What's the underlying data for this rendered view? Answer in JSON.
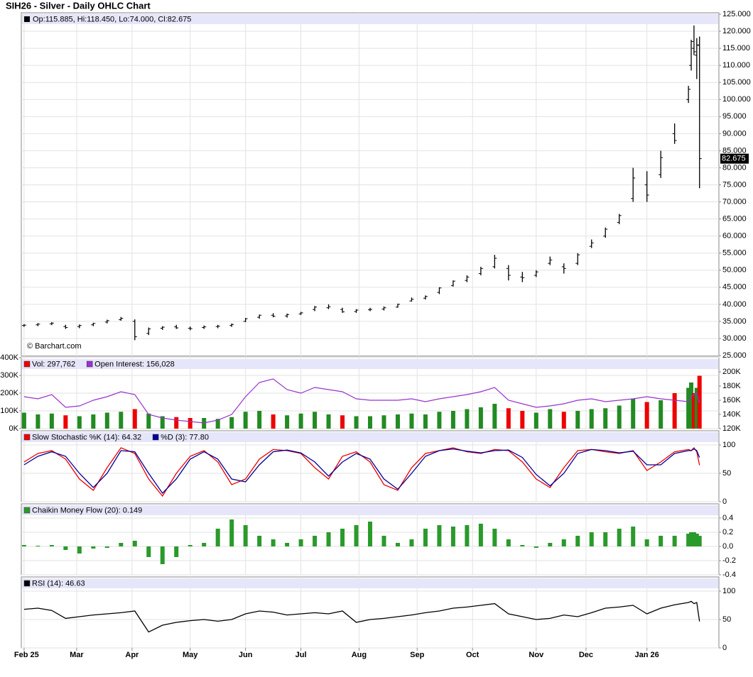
{
  "chart_data": [
    {
      "type": "ohlc",
      "title": "SIH26 - Silver - Daily OHLC Chart",
      "legend": "Op:115.885, Hi:118.450, Lo:74.000, Cl:82.675",
      "credit": "© Barchart.com",
      "last_label": "82.675",
      "color": "#000000",
      "x": [
        0,
        5,
        10,
        15,
        20,
        25,
        30,
        35,
        40,
        45,
        50,
        55,
        60,
        65,
        70,
        75,
        80,
        85,
        90,
        95,
        100,
        105,
        110,
        115,
        120,
        125,
        130,
        135,
        140,
        145,
        150,
        155,
        160,
        165,
        170,
        175,
        180,
        185,
        190,
        195,
        200,
        205,
        210,
        215,
        220,
        225,
        230,
        235,
        240,
        241,
        242,
        243,
        244
      ],
      "xlim": [
        -1,
        251
      ],
      "xticks": [
        {
          "value": 0,
          "label": "Feb 25"
        },
        {
          "value": 19,
          "label": "Mar"
        },
        {
          "value": 39,
          "label": "Apr"
        },
        {
          "value": 60,
          "label": "May"
        },
        {
          "value": 80,
          "label": "Jun"
        },
        {
          "value": 100,
          "label": "Jul"
        },
        {
          "value": 121,
          "label": "Aug"
        },
        {
          "value": 142,
          "label": "Sep"
        },
        {
          "value": 162,
          "label": "Oct"
        },
        {
          "value": 185,
          "label": "Nov"
        },
        {
          "value": 203,
          "label": "Dec"
        },
        {
          "value": 225,
          "label": "Jan 26"
        }
      ],
      "open": [
        33.8,
        34.0,
        34.3,
        33.5,
        33.5,
        34.0,
        34.8,
        35.5,
        35.0,
        31.5,
        33.0,
        33.4,
        33.0,
        33.2,
        33.5,
        33.8,
        35.0,
        36.2,
        36.8,
        36.6,
        37.2,
        38.5,
        39.0,
        38.5,
        37.9,
        38.4,
        38.6,
        39.2,
        41.0,
        41.8,
        43.5,
        45.5,
        47.0,
        49.0,
        51.0,
        50.5,
        48.0,
        48.5,
        52.0,
        51.0,
        52.0,
        57.0,
        60.0,
        64.0,
        71.0,
        75.0,
        78.0,
        90.0,
        100.0,
        110.0,
        115.0,
        113.0,
        115.885
      ],
      "high": [
        34.2,
        34.5,
        34.8,
        34.0,
        34.1,
        34.6,
        35.5,
        36.3,
        35.6,
        33.2,
        33.6,
        34.0,
        33.5,
        33.8,
        34.0,
        34.4,
        36.0,
        37.0,
        37.4,
        37.3,
        37.8,
        39.5,
        40.0,
        39.0,
        38.6,
        39.0,
        39.4,
        40.2,
        42.0,
        42.6,
        45.0,
        47.0,
        48.5,
        51.0,
        54.5,
        51.5,
        49.5,
        50.0,
        54.0,
        52.0,
        55.0,
        59.0,
        62.5,
        66.5,
        80.0,
        79.0,
        85.0,
        93.0,
        104.0,
        117.5,
        121.7,
        118.0,
        118.45
      ],
      "low": [
        33.4,
        33.6,
        33.9,
        32.8,
        33.0,
        33.6,
        34.4,
        35.2,
        29.5,
        31.0,
        32.5,
        32.8,
        32.4,
        32.8,
        33.0,
        33.4,
        34.8,
        35.8,
        36.2,
        36.1,
        36.9,
        38.0,
        38.6,
        37.5,
        37.5,
        38.0,
        38.2,
        39.0,
        40.8,
        41.4,
        43.0,
        45.2,
        46.5,
        48.5,
        50.5,
        47.0,
        46.5,
        48.0,
        51.5,
        49.0,
        51.5,
        56.5,
        59.5,
        63.5,
        70.0,
        70.0,
        77.0,
        87.0,
        99.0,
        108.5,
        113.0,
        106.0,
        74.0
      ],
      "close": [
        33.9,
        34.2,
        34.5,
        33.2,
        33.8,
        34.4,
        35.2,
        35.9,
        30.5,
        32.8,
        33.3,
        33.1,
        32.9,
        33.4,
        33.6,
        34.1,
        35.8,
        36.8,
        36.5,
        37.0,
        37.5,
        39.2,
        39.3,
        37.8,
        38.3,
        38.5,
        39.0,
        40.0,
        41.5,
        42.3,
        44.8,
        46.8,
        48.0,
        50.5,
        53.5,
        48.5,
        47.8,
        49.5,
        53.0,
        50.5,
        54.5,
        58.0,
        62.0,
        66.0,
        77.0,
        72.0,
        83.0,
        88.0,
        103.0,
        117.0,
        114.0,
        116.0,
        82.675
      ],
      "ylim": [
        25,
        125
      ],
      "yticks": [
        {
          "value": 25,
          "label": "25.000"
        },
        {
          "value": 30,
          "label": "30.000"
        },
        {
          "value": 35,
          "label": "35.000"
        },
        {
          "value": 40,
          "label": "40.000"
        },
        {
          "value": 45,
          "label": "45.000"
        },
        {
          "value": 50,
          "label": "50.000"
        },
        {
          "value": 55,
          "label": "55.000"
        },
        {
          "value": 60,
          "label": "60.000"
        },
        {
          "value": 65,
          "label": "65.000"
        },
        {
          "value": 70,
          "label": "70.000"
        },
        {
          "value": 75,
          "label": "75.000"
        },
        {
          "value": 80,
          "label": "80.000"
        },
        {
          "value": 85,
          "label": "85.000"
        },
        {
          "value": 90,
          "label": "90.000"
        },
        {
          "value": 95,
          "label": "95.000"
        },
        {
          "value": 100,
          "label": "100.000"
        },
        {
          "value": 105,
          "label": "105.000"
        },
        {
          "value": 110,
          "label": "110.000"
        },
        {
          "value": 115,
          "label": "115.000"
        },
        {
          "value": 120,
          "label": "120.000"
        },
        {
          "value": 125,
          "label": "125.000"
        }
      ],
      "grid": true
    },
    {
      "type": "volume",
      "up_color": "#228b22",
      "down_color": "#ee0000",
      "series": [
        {
          "name": "Vol: 297,762",
          "color": "#ee0000",
          "values": [
            90000,
            80000,
            85000,
            75000,
            70000,
            80000,
            90000,
            95000,
            110000,
            85000,
            70000,
            65000,
            60000,
            60000,
            55000,
            65000,
            95000,
            100000,
            80000,
            75000,
            85000,
            95000,
            80000,
            75000,
            70000,
            70000,
            75000,
            80000,
            85000,
            80000,
            95000,
            100000,
            110000,
            120000,
            140000,
            115000,
            100000,
            90000,
            110000,
            95000,
            100000,
            110000,
            115000,
            130000,
            170000,
            150000,
            160000,
            200000,
            230000,
            260000,
            200000,
            230000,
            297762
          ]
        },
        {
          "name": "Open Interest: 156,028",
          "color": "#9933cc",
          "axis": "y2",
          "values": [
            165000,
            162000,
            168000,
            150000,
            152000,
            160000,
            165000,
            172000,
            168000,
            140000,
            135000,
            132000,
            130000,
            128000,
            132000,
            140000,
            165000,
            185000,
            190000,
            175000,
            170000,
            178000,
            175000,
            172000,
            162000,
            160000,
            160000,
            160000,
            162000,
            158000,
            162000,
            165000,
            168000,
            172000,
            178000,
            160000,
            155000,
            150000,
            152000,
            155000,
            160000,
            162000,
            158000,
            160000,
            162000,
            165000,
            162000,
            160000,
            158000,
            165000,
            168000,
            170000,
            156028
          ]
        }
      ],
      "ylim": [
        0,
        400000
      ],
      "yticks": [
        {
          "value": 0,
          "label": "0K"
        },
        {
          "value": 100000,
          "label": "100K"
        },
        {
          "value": 200000,
          "label": "200K"
        },
        {
          "value": 300000,
          "label": "300K"
        },
        {
          "value": 400000,
          "label": "400K"
        }
      ],
      "y2lim": [
        120000,
        220000
      ],
      "y2ticks": [
        {
          "value": 120000,
          "label": "120K"
        },
        {
          "value": 140000,
          "label": "140K"
        },
        {
          "value": 160000,
          "label": "160K"
        },
        {
          "value": 180000,
          "label": "180K"
        },
        {
          "value": 200000,
          "label": "200K"
        }
      ],
      "grid": true
    },
    {
      "type": "line",
      "series": [
        {
          "name": "Slow Stochastic %K (14): 64.32",
          "color": "#ee0000",
          "values": [
            70,
            85,
            90,
            75,
            40,
            20,
            60,
            95,
            85,
            40,
            10,
            50,
            80,
            90,
            70,
            30,
            40,
            75,
            92,
            90,
            85,
            60,
            40,
            80,
            88,
            70,
            30,
            20,
            60,
            85,
            90,
            95,
            88,
            85,
            92,
            90,
            70,
            40,
            25,
            60,
            90,
            92,
            88,
            85,
            90,
            55,
            70,
            88,
            92,
            90,
            95,
            88,
            64.32
          ]
        },
        {
          "name": "%D (3): 77.80",
          "color": "#000099",
          "values": [
            65,
            80,
            88,
            80,
            50,
            25,
            50,
            90,
            88,
            50,
            15,
            40,
            75,
            88,
            75,
            40,
            35,
            65,
            88,
            91,
            86,
            70,
            45,
            70,
            85,
            75,
            40,
            22,
            50,
            80,
            90,
            93,
            89,
            86,
            90,
            91,
            78,
            48,
            28,
            50,
            85,
            92,
            90,
            86,
            89,
            65,
            65,
            85,
            90,
            90,
            93,
            90,
            77.8
          ]
        }
      ],
      "ylim": [
        0,
        125
      ],
      "yticks": [
        0,
        50,
        100
      ],
      "grid": true
    },
    {
      "type": "bar",
      "series": [
        {
          "name": "Chaikin Money Flow (20): 0.149",
          "color": "#2a9a2a",
          "values": [
            0.02,
            0.01,
            0.02,
            -0.05,
            -0.1,
            -0.03,
            -0.02,
            0.05,
            0.08,
            -0.15,
            -0.25,
            -0.15,
            0.02,
            0.05,
            0.25,
            0.38,
            0.3,
            0.15,
            0.1,
            0.05,
            0.1,
            0.15,
            0.2,
            0.25,
            0.3,
            0.35,
            0.15,
            0.05,
            0.1,
            0.25,
            0.3,
            0.28,
            0.3,
            0.32,
            0.25,
            0.1,
            0.02,
            -0.02,
            0.05,
            0.1,
            0.15,
            0.2,
            0.2,
            0.25,
            0.28,
            0.1,
            0.15,
            0.15,
            0.18,
            0.2,
            0.2,
            0.18,
            0.149
          ]
        }
      ],
      "ylim": [
        -0.4,
        0.6
      ],
      "yticks": [
        -0.4,
        -0.2,
        {
          "value": 0,
          "label": "0.0"
        },
        0.2,
        0.4
      ],
      "grid": true
    },
    {
      "type": "line",
      "series": [
        {
          "name": "RSI (14): 46.63",
          "color": "#000000",
          "values": [
            68,
            70,
            66,
            52,
            55,
            58,
            60,
            62,
            65,
            28,
            40,
            45,
            48,
            50,
            47,
            50,
            60,
            65,
            63,
            58,
            60,
            62,
            60,
            65,
            45,
            50,
            52,
            55,
            58,
            62,
            65,
            70,
            72,
            75,
            78,
            60,
            55,
            50,
            52,
            58,
            55,
            62,
            70,
            72,
            75,
            60,
            70,
            76,
            80,
            82,
            78,
            80,
            46.63
          ]
        }
      ],
      "ylim": [
        0,
        125
      ],
      "yticks": [
        0,
        50,
        100
      ],
      "grid": true
    }
  ]
}
